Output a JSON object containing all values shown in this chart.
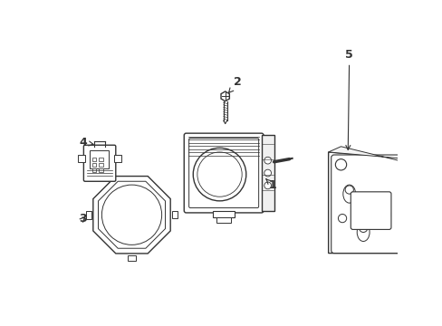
{
  "background_color": "#ffffff",
  "line_color": "#333333",
  "line_width": 1.0,
  "fig_width": 4.89,
  "fig_height": 3.6,
  "dpi": 100
}
